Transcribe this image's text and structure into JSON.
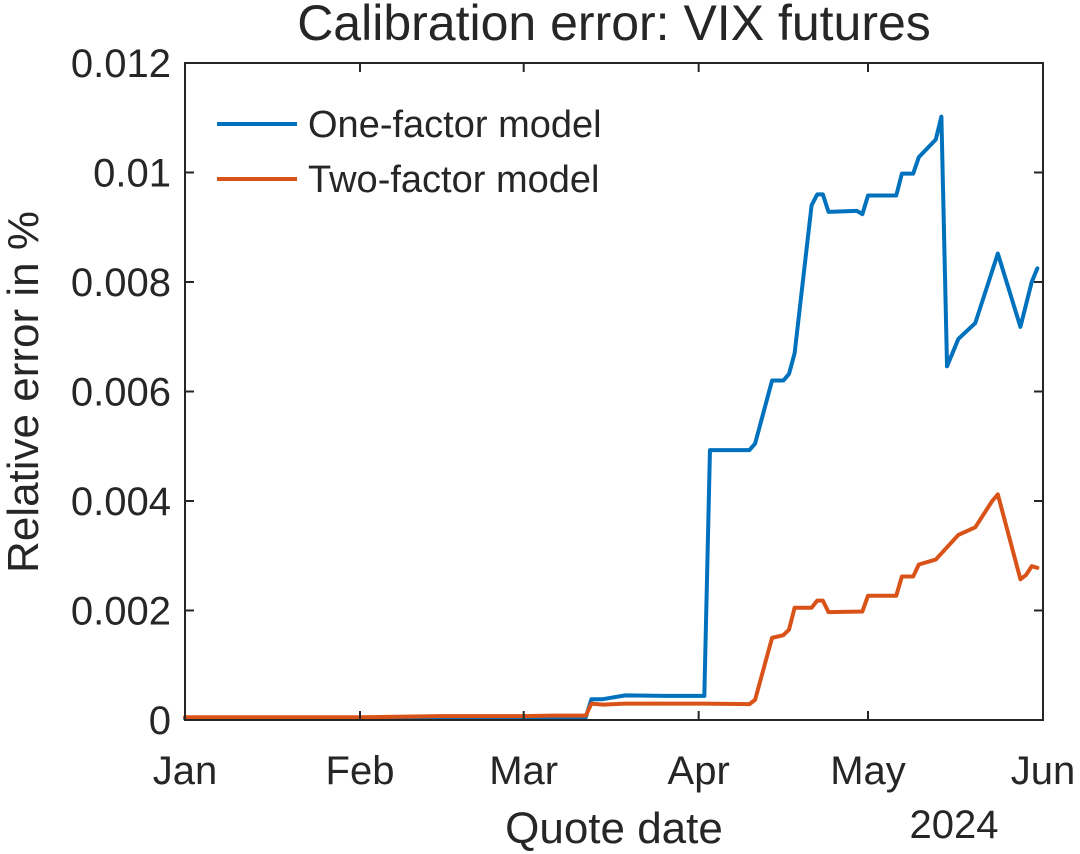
{
  "chart_data": {
    "type": "line",
    "title": "Calibration error: VIX futures",
    "xlabel": "Quote date",
    "ylabel": "Relative error in %",
    "year_label": "2024",
    "x_tick_labels": [
      "Jan",
      "Feb",
      "Mar",
      "Apr",
      "May",
      "Jun"
    ],
    "x_tick_dates": [
      "2024-01-01",
      "2024-02-01",
      "2024-03-01",
      "2024-04-01",
      "2024-05-01",
      "2024-06-01"
    ],
    "xlim": [
      "2024-01-01",
      "2024-06-01"
    ],
    "ylim": [
      0,
      0.012
    ],
    "y_ticks": [
      0,
      0.002,
      0.004,
      0.006,
      0.008,
      0.01,
      0.012
    ],
    "y_tick_labels": [
      "0",
      "0.002",
      "0.004",
      "0.006",
      "0.008",
      "0.01",
      "0.012"
    ],
    "grid": false,
    "legend_position": "top-left",
    "series": [
      {
        "name": "One-factor model",
        "color": "#0072BD",
        "points": [
          [
            "2024-01-01",
            3e-05
          ],
          [
            "2024-01-15",
            3e-05
          ],
          [
            "2024-02-01",
            3e-05
          ],
          [
            "2024-02-15",
            3e-05
          ],
          [
            "2024-03-01",
            3e-05
          ],
          [
            "2024-03-08",
            3e-05
          ],
          [
            "2024-03-09",
            5e-05
          ],
          [
            "2024-03-12",
            5e-05
          ],
          [
            "2024-03-13",
            0.00038
          ],
          [
            "2024-03-15",
            0.00038
          ],
          [
            "2024-03-19",
            0.00045
          ],
          [
            "2024-03-26",
            0.00044
          ],
          [
            "2024-04-02",
            0.00044
          ],
          [
            "2024-04-03",
            0.00493
          ],
          [
            "2024-04-10",
            0.00493
          ],
          [
            "2024-04-11",
            0.00505
          ],
          [
            "2024-04-14",
            0.0062
          ],
          [
            "2024-04-16",
            0.0062
          ],
          [
            "2024-04-17",
            0.00632
          ],
          [
            "2024-04-18",
            0.0067
          ],
          [
            "2024-04-21",
            0.0094
          ],
          [
            "2024-04-22",
            0.0096
          ],
          [
            "2024-04-23",
            0.0096
          ],
          [
            "2024-04-24",
            0.00928
          ],
          [
            "2024-04-29",
            0.0093
          ],
          [
            "2024-04-30",
            0.00924
          ],
          [
            "2024-05-01",
            0.00958
          ],
          [
            "2024-05-06",
            0.00958
          ],
          [
            "2024-05-07",
            0.00998
          ],
          [
            "2024-05-09",
            0.00998
          ],
          [
            "2024-05-10",
            0.01028
          ],
          [
            "2024-05-13",
            0.0106
          ],
          [
            "2024-05-14",
            0.01102
          ],
          [
            "2024-05-15",
            0.00646
          ],
          [
            "2024-05-17",
            0.00696
          ],
          [
            "2024-05-20",
            0.00725
          ],
          [
            "2024-05-24",
            0.00852
          ],
          [
            "2024-05-28",
            0.00718
          ],
          [
            "2024-05-30",
            0.008
          ],
          [
            "2024-05-31",
            0.00825
          ]
        ]
      },
      {
        "name": "Two-factor model",
        "color": "#D95319",
        "points": [
          [
            "2024-01-01",
            5e-05
          ],
          [
            "2024-01-15",
            5e-05
          ],
          [
            "2024-02-01",
            5e-05
          ],
          [
            "2024-02-15",
            7e-05
          ],
          [
            "2024-03-01",
            7e-05
          ],
          [
            "2024-03-06",
            8e-05
          ],
          [
            "2024-03-12",
            8e-05
          ],
          [
            "2024-03-13",
            0.0003
          ],
          [
            "2024-03-15",
            0.00028
          ],
          [
            "2024-03-19",
            0.0003
          ],
          [
            "2024-03-26",
            0.0003
          ],
          [
            "2024-04-02",
            0.0003
          ],
          [
            "2024-04-10",
            0.00029
          ],
          [
            "2024-04-11",
            0.00037
          ],
          [
            "2024-04-14",
            0.0015
          ],
          [
            "2024-04-16",
            0.00155
          ],
          [
            "2024-04-17",
            0.00165
          ],
          [
            "2024-04-18",
            0.00205
          ],
          [
            "2024-04-21",
            0.00205
          ],
          [
            "2024-04-22",
            0.00218
          ],
          [
            "2024-04-23",
            0.00218
          ],
          [
            "2024-04-24",
            0.00197
          ],
          [
            "2024-04-29",
            0.00198
          ],
          [
            "2024-04-30",
            0.00198
          ],
          [
            "2024-05-01",
            0.00227
          ],
          [
            "2024-05-06",
            0.00227
          ],
          [
            "2024-05-07",
            0.00262
          ],
          [
            "2024-05-09",
            0.00262
          ],
          [
            "2024-05-10",
            0.00284
          ],
          [
            "2024-05-13",
            0.00293
          ],
          [
            "2024-05-17",
            0.00338
          ],
          [
            "2024-05-20",
            0.00352
          ],
          [
            "2024-05-23",
            0.004
          ],
          [
            "2024-05-24",
            0.00412
          ],
          [
            "2024-05-28",
            0.00257
          ],
          [
            "2024-05-29",
            0.00265
          ],
          [
            "2024-05-30",
            0.00281
          ],
          [
            "2024-05-31",
            0.00278
          ]
        ]
      }
    ]
  }
}
